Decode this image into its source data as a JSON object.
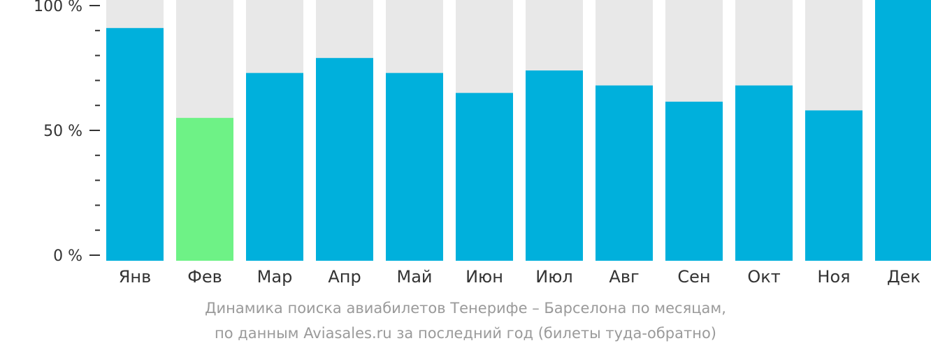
{
  "chart_data": {
    "type": "bar",
    "categories": [
      "Янв",
      "Фев",
      "Мар",
      "Апр",
      "Май",
      "Июн",
      "Июл",
      "Авг",
      "Сен",
      "Окт",
      "Ноя",
      "Дек"
    ],
    "values": [
      91,
      55,
      73,
      79,
      73,
      65,
      74,
      68,
      61.5,
      68,
      58,
      100
    ],
    "highlight_index": 1,
    "ylim": [
      0,
      100
    ],
    "y_ticks": [
      {
        "value": 0,
        "label": "0 %"
      },
      {
        "value": 50,
        "label": "50 %"
      },
      {
        "value": 100,
        "label": "100 %"
      }
    ],
    "minor_tick_step": 10,
    "colors": {
      "bar": "#00b0dc",
      "highlight": "#6ef286",
      "background_bar": "#e8e8e8",
      "axis": "#333333",
      "tick_label": "#333333",
      "category_label": "#333333"
    }
  },
  "caption": {
    "line1": "Динамика поиска авиабилетов Тенерифе – Барселона по месяцам,",
    "line2": "по данным Aviasales.ru за последний год (билеты туда-обратно)"
  }
}
